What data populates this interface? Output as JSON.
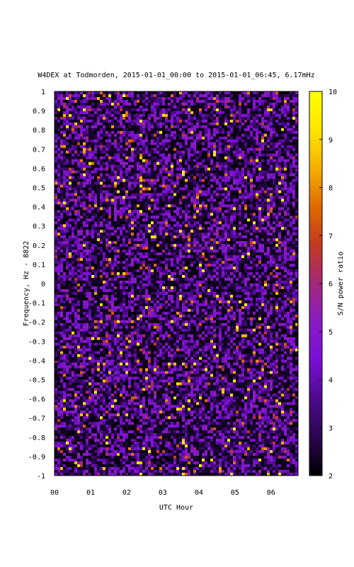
{
  "chart_data": {
    "type": "heatmap",
    "title": "W4DEX at Todmorden, 2015-01-01_00:00 to 2015-01-01_06:45, 6.17mHz",
    "xlabel": "UTC Hour",
    "ylabel": "Frequency, Hz - 8822",
    "colorbar_label": "S/N power ratio",
    "x_range": [
      0,
      6.75
    ],
    "x_ticks": [
      0,
      1,
      2,
      3,
      4,
      5,
      6
    ],
    "x_tick_labels": [
      "00",
      "01",
      "02",
      "03",
      "04",
      "05",
      "06"
    ],
    "y_range": [
      -1,
      1
    ],
    "y_ticks": [
      1,
      0.9,
      0.8,
      0.7,
      0.6,
      0.5,
      0.4,
      0.3,
      0.2,
      0.1,
      0,
      -0.1,
      -0.2,
      -0.3,
      -0.4,
      -0.5,
      -0.6,
      -0.7,
      -0.8,
      -0.9,
      -1
    ],
    "y_tick_labels": [
      "1",
      "0.9",
      "0.8",
      "0.7",
      "0.6",
      "0.5",
      "0.4",
      "0.3",
      "0.2",
      "0.1",
      "0",
      "-0.1",
      "-0.2",
      "-0.3",
      "-0.4",
      "-0.5",
      "-0.6",
      "-0.7",
      "-0.8",
      "-0.9",
      "-1"
    ],
    "color_range": [
      2,
      10
    ],
    "colorbar_ticks": [
      10,
      9,
      8,
      7,
      6,
      5,
      4,
      3,
      2
    ],
    "colorbar_tick_labels": [
      "10",
      "9",
      "8",
      "7",
      "6",
      "5",
      "4",
      "3",
      "2"
    ],
    "colormap": [
      "#000000",
      "#2a0650",
      "#4d0a8c",
      "#7a0fd6",
      "#8a1cc4",
      "#a3287a",
      "#c23a20",
      "#e06a00",
      "#f5b000",
      "#ffe600",
      "#ffff00"
    ],
    "noise_floor": 2,
    "typical_snr_range": [
      2,
      5
    ],
    "grid": false
  }
}
